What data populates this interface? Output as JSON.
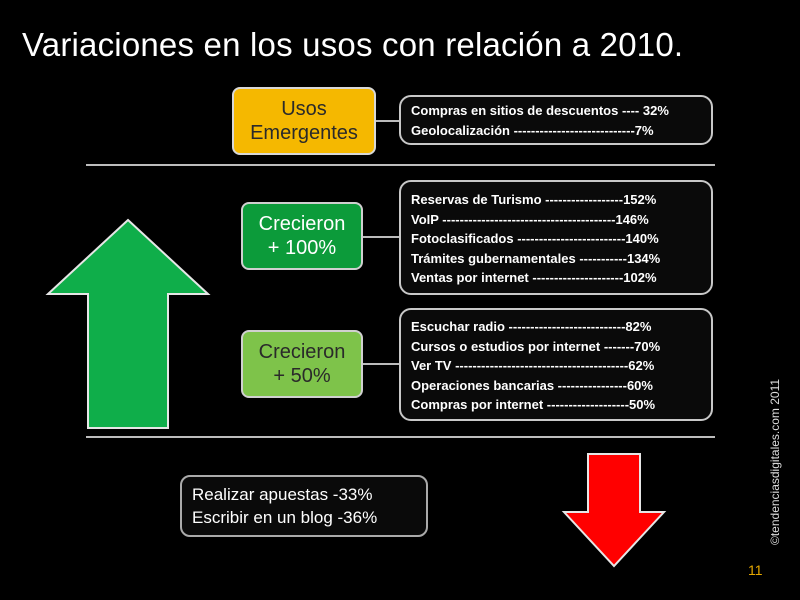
{
  "title": "Variaciones en los usos con relación a 2010.",
  "categories": {
    "emerging": "Usos\nEmergentes",
    "grew100": "Crecieron\n+ 100%",
    "grew50": "Crecieron\n+ 50%"
  },
  "emerging_items": [
    "Compras en sitios de descuentos ---- 32%",
    "Geolocalización ----------------------------7%"
  ],
  "grew100_items": [
    "Reservas de Turismo ------------------152%",
    "VoIP ----------------------------------------146%",
    "Fotoclasificados -------------------------140%",
    "Trámites gubernamentales -----------134%",
    "Ventas por internet ---------------------102%"
  ],
  "grew50_items": [
    "Escuchar radio ---------------------------82%",
    "Cursos o estudios por internet -------70%",
    "Ver TV ----------------------------------------62%",
    "Operaciones bancarias ----------------60%",
    "Compras por internet -------------------50%"
  ],
  "declined_items": [
    "Realizar apuestas   -33%",
    "Escribir en un blog -36%"
  ],
  "side_text": "©tendenciasdigitales.com 2011",
  "page_number": "11",
  "colors": {
    "up_arrow": "#0fae4a",
    "down_arrow": "#ff0000",
    "emerging": "#f5b800",
    "grew100": "#0c9b3a",
    "grew50": "#7ec34a"
  }
}
